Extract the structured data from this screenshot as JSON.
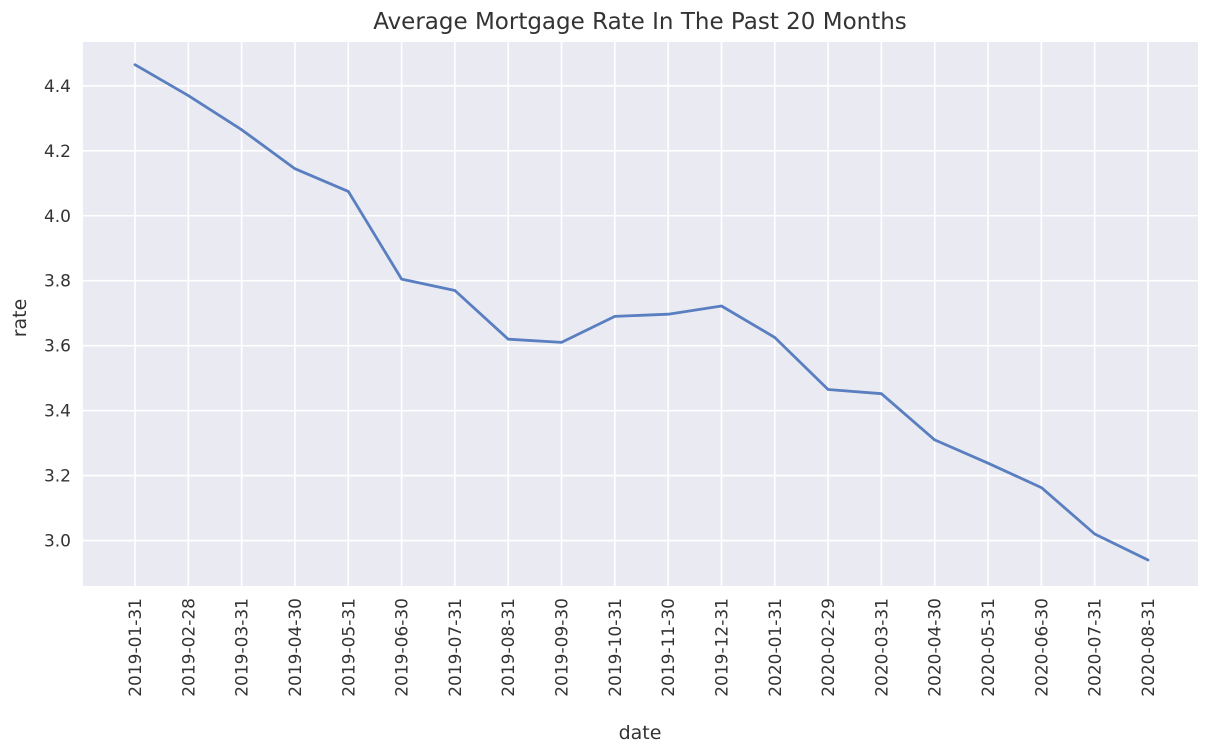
{
  "chart_data": {
    "type": "line",
    "title": "Average Mortgage Rate In The Past 20 Months",
    "xlabel": "date",
    "ylabel": "rate",
    "x": [
      "2019-01-31",
      "2019-02-28",
      "2019-03-31",
      "2019-04-30",
      "2019-05-31",
      "2019-06-30",
      "2019-07-31",
      "2019-08-31",
      "2019-09-30",
      "2019-10-31",
      "2019-11-30",
      "2019-12-31",
      "2020-01-31",
      "2020-02-29",
      "2020-03-31",
      "2020-04-30",
      "2020-05-31",
      "2020-06-30",
      "2020-07-31",
      "2020-08-31"
    ],
    "series": [
      {
        "values": [
          4.465,
          4.37,
          4.265,
          4.145,
          4.075,
          3.805,
          3.77,
          3.62,
          3.61,
          3.69,
          3.697,
          3.722,
          3.625,
          3.465,
          3.452,
          3.31,
          3.238,
          3.163,
          3.02,
          2.94
        ],
        "color": "#5a7fc0"
      }
    ],
    "yticks": [
      "3.0",
      "3.2",
      "3.4",
      "3.6",
      "3.8",
      "4.0",
      "4.2",
      "4.4"
    ],
    "ylim": [
      2.86,
      4.535
    ],
    "grid": true,
    "legend": "none",
    "colors": {
      "plot_background": "#eaeaf2",
      "grid": "#ffffff",
      "text": "#333333"
    }
  }
}
